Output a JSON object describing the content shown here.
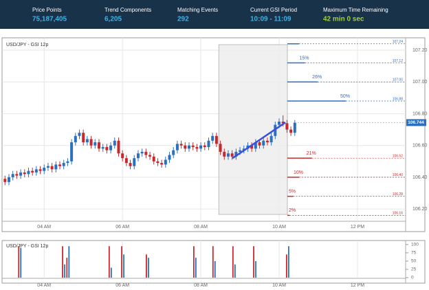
{
  "header": {
    "stats": [
      {
        "label": "Price Points",
        "value": "75,187,405"
      },
      {
        "label": "Trend Components",
        "value": "6,205"
      },
      {
        "label": "Matching Events",
        "value": "292"
      },
      {
        "label": "Current GSI Period",
        "value": "10:09 - 11:09"
      },
      {
        "label": "Maximum Time Remaining",
        "value": "42 min 0 sec"
      }
    ]
  },
  "chart_data": [
    {
      "type": "candlestick",
      "title": "USD/JPY - GSI 12p",
      "x": [
        3.0,
        3.1,
        3.2,
        3.3,
        3.4,
        3.5,
        3.6,
        3.7,
        3.8,
        3.9,
        4.0,
        4.1,
        4.2,
        4.3,
        4.4,
        4.5,
        4.6,
        4.7,
        4.8,
        4.9,
        5.0,
        5.1,
        5.2,
        5.3,
        5.4,
        5.5,
        5.6,
        5.7,
        5.8,
        5.9,
        6.0,
        6.1,
        6.2,
        6.3,
        6.4,
        6.5,
        6.6,
        6.7,
        6.8,
        6.9,
        7.0,
        7.1,
        7.2,
        7.3,
        7.4,
        7.5,
        7.6,
        7.7,
        7.8,
        7.9,
        8.0,
        8.1,
        8.2,
        8.3,
        8.4,
        8.5,
        8.6,
        8.7,
        8.8,
        8.9,
        9.0,
        9.1,
        9.2,
        9.3,
        9.4,
        9.5,
        9.6,
        9.7,
        9.8,
        9.9,
        10.0,
        10.1,
        10.2,
        10.3,
        10.4
      ],
      "open": [
        106.39,
        106.37,
        106.4,
        106.42,
        106.41,
        106.43,
        106.42,
        106.44,
        106.43,
        106.45,
        106.44,
        106.46,
        106.47,
        106.45,
        106.48,
        106.47,
        106.49,
        106.5,
        106.62,
        106.66,
        106.68,
        106.62,
        106.64,
        106.6,
        106.62,
        106.58,
        106.59,
        106.57,
        106.6,
        106.63,
        106.55,
        106.52,
        106.49,
        106.47,
        106.52,
        106.55,
        106.56,
        106.54,
        106.53,
        106.5,
        106.49,
        106.48,
        106.51,
        106.54,
        106.57,
        106.61,
        106.6,
        106.58,
        106.6,
        106.59,
        106.58,
        106.6,
        106.59,
        106.63,
        106.66,
        106.61,
        106.56,
        106.53,
        106.55,
        106.53,
        106.56,
        106.57,
        106.58,
        106.6,
        106.58,
        106.62,
        106.6,
        106.63,
        106.62,
        106.66,
        106.73,
        106.75,
        106.74,
        106.7,
        106.68
      ],
      "high": [
        106.41,
        106.42,
        106.44,
        106.44,
        106.45,
        106.45,
        106.46,
        106.46,
        106.47,
        106.47,
        106.48,
        106.49,
        106.49,
        106.5,
        106.5,
        106.51,
        106.52,
        106.64,
        106.68,
        106.7,
        106.7,
        106.66,
        106.66,
        106.64,
        106.64,
        106.61,
        106.61,
        106.62,
        106.65,
        106.65,
        106.57,
        106.54,
        106.51,
        106.54,
        106.57,
        106.58,
        106.58,
        106.56,
        106.55,
        106.52,
        106.51,
        106.53,
        106.56,
        106.59,
        106.63,
        106.63,
        106.62,
        106.62,
        106.62,
        106.61,
        106.62,
        106.62,
        106.65,
        106.68,
        106.68,
        106.63,
        106.58,
        106.57,
        106.57,
        106.58,
        106.59,
        106.6,
        106.62,
        106.62,
        106.64,
        106.64,
        106.65,
        106.65,
        106.68,
        106.75,
        106.77,
        106.79,
        106.76,
        106.72,
        106.76
      ],
      "low": [
        106.35,
        106.35,
        106.38,
        106.39,
        106.39,
        106.4,
        106.4,
        106.41,
        106.41,
        106.42,
        106.42,
        106.44,
        106.43,
        106.43,
        106.45,
        106.45,
        106.47,
        106.48,
        106.6,
        106.64,
        106.6,
        106.6,
        106.58,
        106.58,
        106.56,
        106.56,
        106.55,
        106.55,
        106.58,
        106.53,
        106.5,
        106.47,
        106.45,
        106.45,
        106.5,
        106.53,
        106.52,
        106.51,
        106.48,
        106.47,
        106.46,
        106.46,
        106.49,
        106.52,
        106.55,
        106.58,
        106.56,
        106.56,
        106.57,
        106.56,
        106.56,
        106.57,
        106.57,
        106.61,
        106.59,
        106.54,
        106.51,
        106.51,
        106.51,
        106.51,
        106.54,
        106.55,
        106.56,
        106.56,
        106.56,
        106.58,
        106.58,
        106.6,
        106.6,
        106.64,
        106.71,
        106.72,
        106.68,
        106.66,
        106.66
      ],
      "close": [
        106.37,
        106.4,
        106.42,
        106.41,
        106.43,
        106.42,
        106.44,
        106.43,
        106.45,
        106.44,
        106.46,
        106.47,
        106.45,
        106.48,
        106.47,
        106.49,
        106.5,
        106.62,
        106.66,
        106.68,
        106.62,
        106.64,
        106.6,
        106.62,
        106.58,
        106.59,
        106.57,
        106.6,
        106.63,
        106.55,
        106.52,
        106.49,
        106.47,
        106.52,
        106.55,
        106.56,
        106.54,
        106.53,
        106.5,
        106.49,
        106.48,
        106.51,
        106.54,
        106.57,
        106.61,
        106.6,
        106.58,
        106.6,
        106.59,
        106.58,
        106.6,
        106.59,
        106.63,
        106.66,
        106.61,
        106.56,
        106.53,
        106.55,
        106.53,
        106.56,
        106.57,
        106.58,
        106.6,
        106.58,
        106.62,
        106.6,
        106.63,
        106.62,
        106.66,
        106.73,
        106.75,
        106.74,
        106.7,
        106.68,
        106.744
      ],
      "up_color": "#2c6fbf",
      "down_color": "#c8282d",
      "xlim": [
        2.96,
        13.23
      ],
      "xticks": [
        {
          "value": 4,
          "label": "04 AM"
        },
        {
          "value": 6,
          "label": "06 AM"
        },
        {
          "value": 8,
          "label": "08 AM"
        },
        {
          "value": 10,
          "label": "10 AM"
        },
        {
          "value": 12,
          "label": "12 PM"
        }
      ],
      "ylim": [
        106.14,
        107.265
      ],
      "yticks": [
        {
          "value": 106.2,
          "label": "106.20"
        },
        {
          "value": 106.4,
          "label": "106.40"
        },
        {
          "value": 106.6,
          "label": "106.60"
        },
        {
          "value": 106.8,
          "label": "106.80"
        },
        {
          "value": 107.0,
          "label": "107.00"
        },
        {
          "value": 107.2,
          "label": "107.20"
        }
      ],
      "grid": true,
      "gsi_window": [
        8.46,
        10.21
      ],
      "trend": {
        "x": [
          8.81,
          10.16
        ],
        "y": [
          106.52,
          106.745
        ],
        "color": "#3a4fe0"
      },
      "levels": [
        {
          "price": 107.24,
          "label": "107.24",
          "pct": 10,
          "color": "#2c6fbf"
        },
        {
          "price": 107.12,
          "label": "107.12",
          "pct": 15,
          "pct_label": "15%",
          "color": "#2c6fbf"
        },
        {
          "price": 107.0,
          "label": "107.00",
          "pct": 26,
          "pct_label": "26%",
          "color": "#2c6fbf"
        },
        {
          "price": 106.88,
          "label": "106.88",
          "pct": 50,
          "pct_label": "50%",
          "color": "#2c6fbf"
        },
        {
          "price": 106.52,
          "label": "106.52",
          "pct": 21,
          "pct_label": "21%",
          "color": "#c8282d"
        },
        {
          "price": 106.4,
          "label": "106.40",
          "pct": 10,
          "pct_label": "10%",
          "color": "#c8282d"
        },
        {
          "price": 106.28,
          "label": "106.28",
          "pct": 5,
          "pct_label": "5%",
          "color": "#c8282d"
        },
        {
          "price": 106.16,
          "label": "106.16",
          "pct": 2,
          "pct_label": "2%",
          "color": "#c8282d"
        }
      ]
    },
    {
      "type": "bar",
      "title": "USD/JPY - GSI 12p",
      "x": [
        3.37,
        4.49,
        4.6,
        5.68,
        6.0,
        6.63,
        7.84,
        8.33,
        8.84,
        9.37,
        10.21
      ],
      "series": [
        {
          "name": "down",
          "color": "#c8282d",
          "values": [
            95,
            95,
            60,
            95,
            95,
            70,
            95,
            95,
            95,
            95,
            70
          ]
        },
        {
          "name": "up",
          "color": "#2c6fbf",
          "values": [
            90,
            40,
            95,
            30,
            70,
            60,
            60,
            50,
            40,
            50,
            95
          ]
        }
      ],
      "xlim": [
        2.96,
        13.23
      ],
      "xticks": [
        {
          "value": 4,
          "label": "04 AM"
        },
        {
          "value": 6,
          "label": "06 AM"
        },
        {
          "value": 8,
          "label": "08 AM"
        },
        {
          "value": 10,
          "label": "10 AM"
        },
        {
          "value": 12,
          "label": "12 PM"
        }
      ],
      "ylim": [
        0,
        108
      ],
      "yticks": [
        0,
        25,
        50,
        75,
        100
      ],
      "grid": true
    }
  ]
}
